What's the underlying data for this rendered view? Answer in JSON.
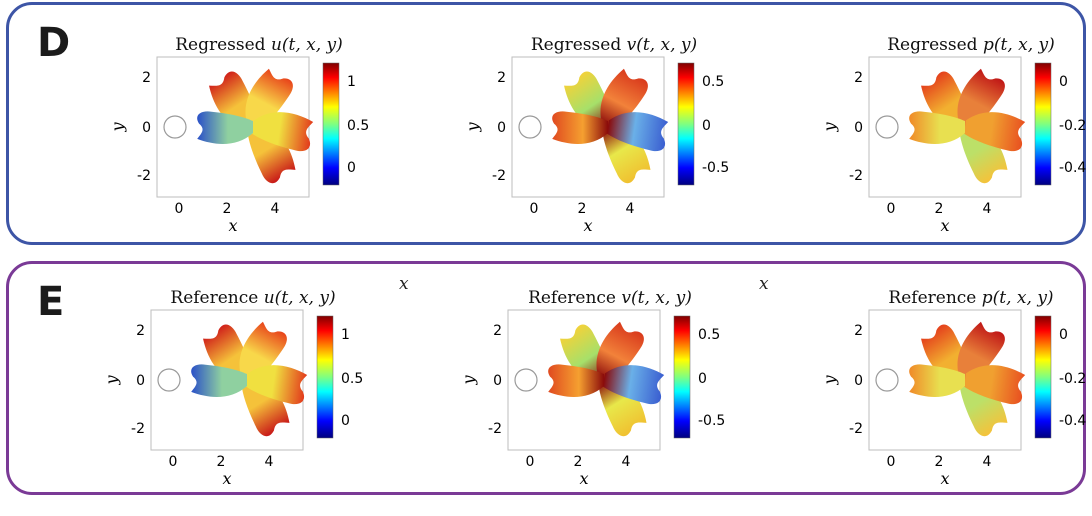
{
  "panels": [
    {
      "letter": "D",
      "color": "#3d55a6",
      "stray_labels": [],
      "plots": [
        {
          "prefix": "Regressed",
          "field": "u(t, x, y)",
          "cbar_ticks": [
            "1",
            "0.5",
            "0"
          ],
          "colormap": "jet"
        },
        {
          "prefix": "Regressed",
          "field": "v(t, x, y)",
          "cbar_ticks": [
            "0.5",
            "0",
            "-0.5"
          ],
          "colormap": "jet"
        },
        {
          "prefix": "Regressed",
          "field": "p(t, x, y)",
          "cbar_ticks": [
            "0",
            "-0.2",
            "-0.4"
          ],
          "colormap": "jet"
        }
      ]
    },
    {
      "letter": "E",
      "color": "#7a3a96",
      "stray_labels": [
        "x",
        "x"
      ],
      "plots": [
        {
          "prefix": "Reference",
          "field": "u(t, x, y)",
          "cbar_ticks": [
            "1",
            "0.5",
            "0"
          ],
          "colormap": "jet"
        },
        {
          "prefix": "Reference",
          "field": "v(t, x, y)",
          "cbar_ticks": [
            "0.5",
            "0",
            "-0.5"
          ],
          "colormap": "jet"
        },
        {
          "prefix": "Reference",
          "field": "p(t, x, y)",
          "cbar_ticks": [
            "0",
            "-0.2",
            "-0.4"
          ],
          "colormap": "jet"
        }
      ]
    }
  ],
  "axes": {
    "xlabel": "x",
    "ylabel": "y",
    "xticks": [
      "0",
      "2",
      "4"
    ],
    "yticks": [
      "2",
      "0",
      "-2"
    ]
  }
}
